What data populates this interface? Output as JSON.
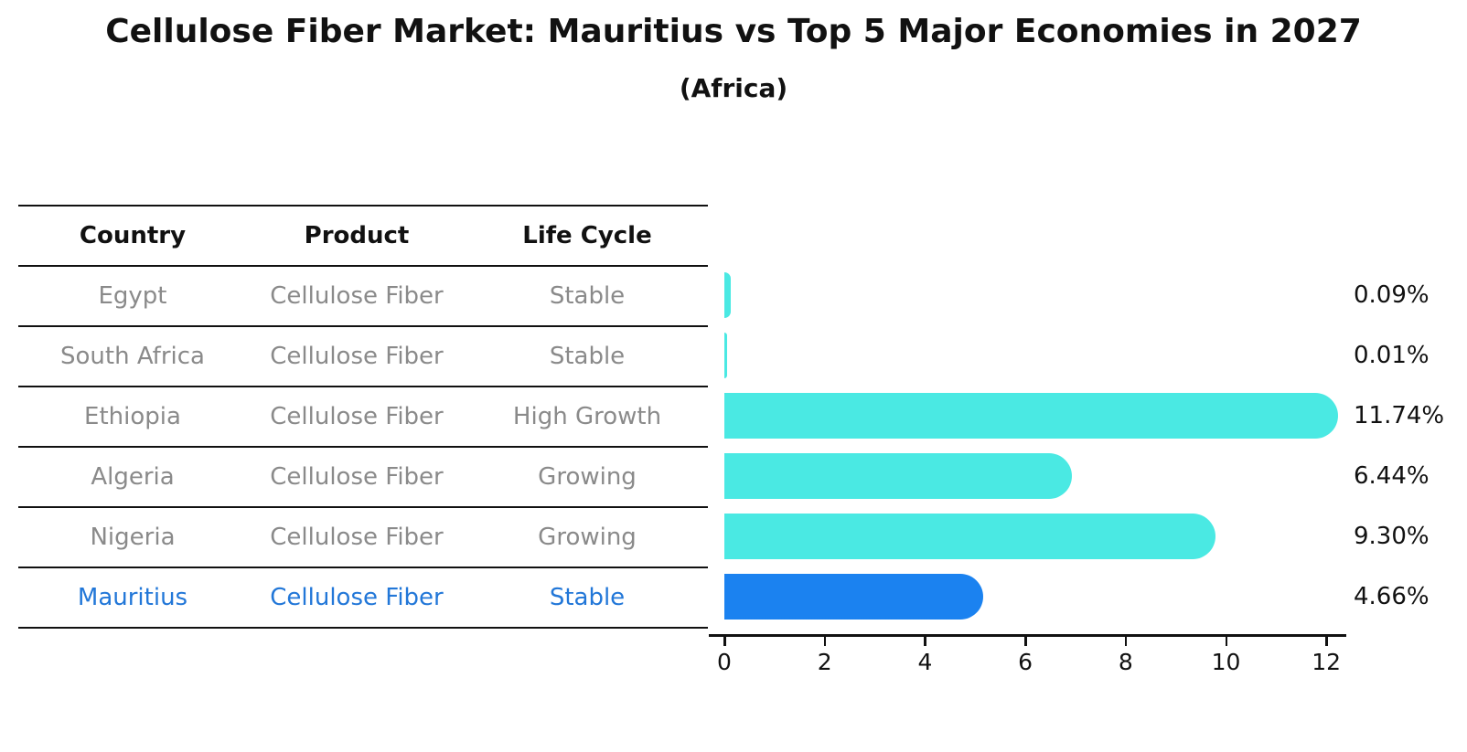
{
  "title": "Cellulose Fiber Market: Mauritius vs Top 5 Major Economies in 2027",
  "subtitle": "(Africa)",
  "table": {
    "headers": [
      "Country",
      "Product",
      "Life Cycle"
    ],
    "rows": [
      {
        "country": "Egypt",
        "product": "Cellulose Fiber",
        "life_cycle": "Stable",
        "highlight": false
      },
      {
        "country": "South Africa",
        "product": "Cellulose Fiber",
        "life_cycle": "Stable",
        "highlight": false
      },
      {
        "country": "Ethiopia",
        "product": "Cellulose Fiber",
        "life_cycle": "High Growth",
        "highlight": false
      },
      {
        "country": "Algeria",
        "product": "Cellulose Fiber",
        "life_cycle": "Growing",
        "highlight": false
      },
      {
        "country": "Nigeria",
        "product": "Cellulose Fiber",
        "life_cycle": "Growing",
        "highlight": false
      },
      {
        "country": "Mauritius",
        "product": "Cellulose Fiber",
        "life_cycle": "Stable",
        "highlight": true
      }
    ]
  },
  "chart_data": {
    "type": "bar",
    "orientation": "horizontal",
    "title": "Cellulose Fiber Market: Mauritius vs Top 5 Major Economies in 2027 (Africa)",
    "categories": [
      "Egypt",
      "South Africa",
      "Ethiopia",
      "Algeria",
      "Nigeria",
      "Mauritius"
    ],
    "values": [
      0.09,
      0.01,
      11.74,
      6.44,
      9.3,
      4.66
    ],
    "value_labels": [
      "0.09%",
      "0.01%",
      "11.74%",
      "6.44%",
      "9.30%",
      "4.66%"
    ],
    "x_ticks": [
      0,
      2,
      4,
      6,
      8,
      10,
      12
    ],
    "x_tick_labels": [
      "0",
      "2",
      "4",
      "6",
      "8",
      "10",
      "12"
    ],
    "xlim": [
      0,
      12.3
    ],
    "grid": false,
    "legend": false,
    "highlight_index": 5
  },
  "colors": {
    "bar": "#4ae9e3",
    "highlight_bar": "#1b82f0",
    "highlight_text": "#2277d8",
    "table_text": "#8a8a8a",
    "header_text": "#111111",
    "line": "#111111"
  }
}
